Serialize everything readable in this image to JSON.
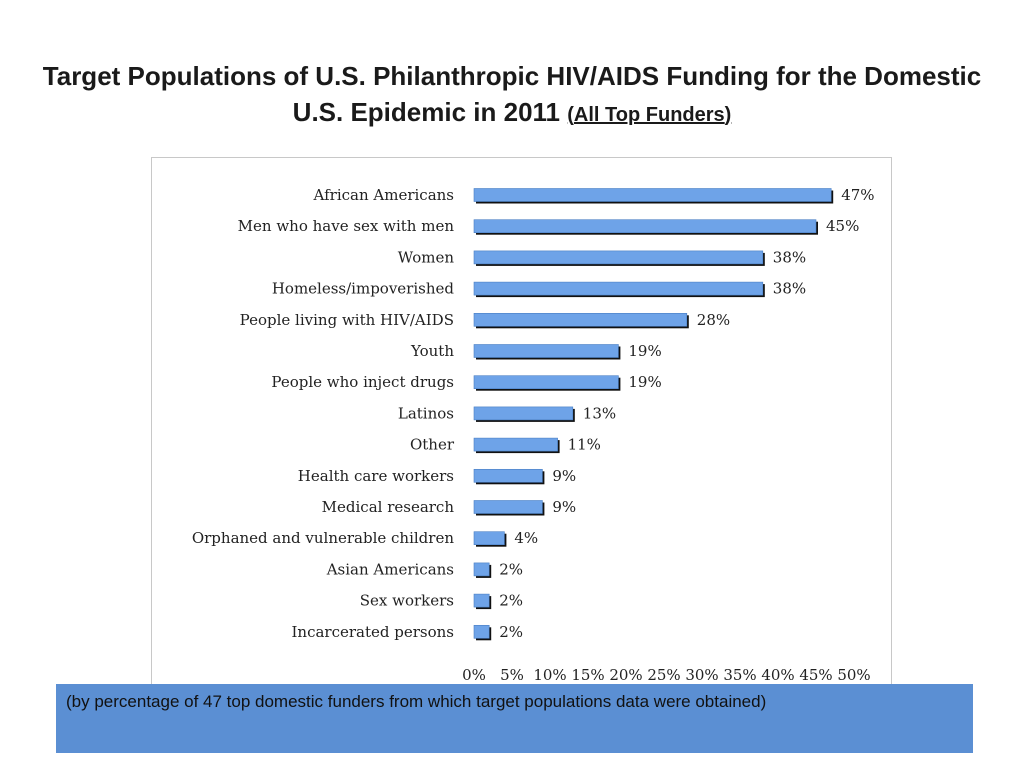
{
  "header": {
    "title_main": "Target Populations of U.S. Philanthropic HIV/AIDS Funding for the Domestic U.S. Epidemic in 2011",
    "title_paren_open": "(",
    "title_sub": "All Top Funders",
    "title_paren_close": ")"
  },
  "caption": {
    "text": "(by percentage of 47 top domestic funders from which target populations data were obtained)"
  },
  "colors": {
    "bar_fill": "#6ea3e8",
    "bar_dark": "#111111",
    "caption_bg": "#5b8fd3"
  },
  "chart_data": {
    "type": "bar",
    "orientation": "horizontal",
    "categories": [
      "African Americans",
      "Men who have sex with men",
      "Women",
      "Homeless/impoverished",
      "People living with HIV/AIDS",
      "Youth",
      "People who inject drugs",
      "Latinos",
      "Other",
      "Health care workers",
      "Medical research",
      "Orphaned and vulnerable children",
      "Asian Americans",
      "Sex workers",
      "Incarcerated persons"
    ],
    "values": [
      47,
      45,
      38,
      38,
      28,
      19,
      19,
      13,
      11,
      9,
      9,
      4,
      2,
      2,
      2
    ],
    "value_labels": [
      "47%",
      "45%",
      "38%",
      "38%",
      "28%",
      "19%",
      "19%",
      "13%",
      "11%",
      "9%",
      "9%",
      "4%",
      "2%",
      "2%",
      "2%"
    ],
    "xlim": [
      0,
      50
    ],
    "x_ticks": [
      0,
      5,
      10,
      15,
      20,
      25,
      30,
      35,
      40,
      45,
      50
    ],
    "x_tick_labels": [
      "0%",
      "5%",
      "10%",
      "15%",
      "20%",
      "25%",
      "30%",
      "35%",
      "40%",
      "45%",
      "50%"
    ],
    "title": "",
    "xlabel": "",
    "ylabel": "",
    "grid": false,
    "legend": "none"
  }
}
